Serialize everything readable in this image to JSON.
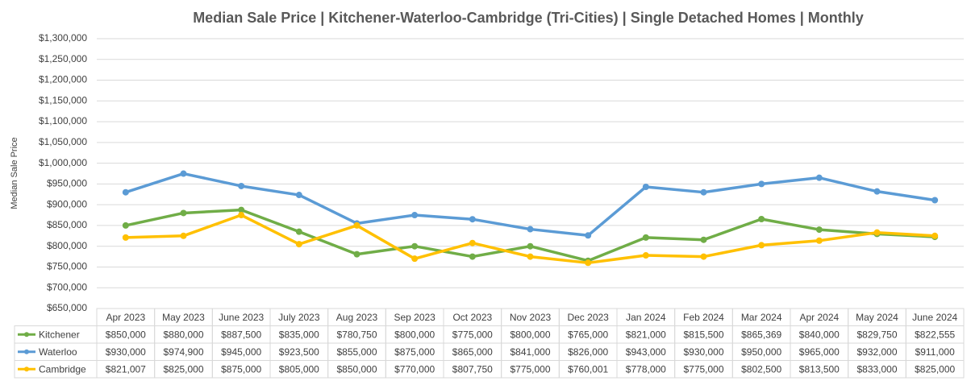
{
  "chart_data": {
    "type": "line",
    "title": "Median Sale Price | Kitchener-Waterloo-Cambridge (Tri-Cities) | Single Detached Homes | Monthly",
    "y_label": "Median Sale Price",
    "categories": [
      "Apr 2023",
      "May 2023",
      "June 2023",
      "July 2023",
      "Aug 2023",
      "Sep 2023",
      "Oct 2023",
      "Nov 2023",
      "Dec 2023",
      "Jan 2024",
      "Feb 2024",
      "Mar 2024",
      "Apr 2024",
      "May 2024",
      "June 2024"
    ],
    "series": [
      {
        "name": "Kitchener",
        "color": "#70ad47",
        "values": [
          850000,
          880000,
          887500,
          835000,
          780750,
          800000,
          775000,
          800000,
          765000,
          821000,
          815500,
          865369,
          840000,
          829750,
          822555
        ],
        "value_labels": [
          "$850,000",
          "$880,000",
          "$887,500",
          "$835,000",
          "$780,750",
          "$800,000",
          "$775,000",
          "$800,000",
          "$765,000",
          "$821,000",
          "$815,500",
          "$865,369",
          "$840,000",
          "$829,750",
          "$822,555"
        ]
      },
      {
        "name": "Waterloo",
        "color": "#5b9bd5",
        "values": [
          930000,
          974900,
          945000,
          923500,
          855000,
          875000,
          865000,
          841000,
          826000,
          943000,
          930000,
          950000,
          965000,
          932000,
          911000
        ],
        "value_labels": [
          "$930,000",
          "$974,900",
          "$945,000",
          "$923,500",
          "$855,000",
          "$875,000",
          "$865,000",
          "$841,000",
          "$826,000",
          "$943,000",
          "$930,000",
          "$950,000",
          "$965,000",
          "$932,000",
          "$911,000"
        ]
      },
      {
        "name": "Cambridge",
        "color": "#ffc000",
        "values": [
          821007,
          825000,
          875000,
          805000,
          850000,
          770000,
          807750,
          775000,
          760001,
          778000,
          775000,
          802500,
          813500,
          833000,
          825000
        ],
        "value_labels": [
          "$821,007",
          "$825,000",
          "$875,000",
          "$805,000",
          "$850,000",
          "$770,000",
          "$807,750",
          "$775,000",
          "$760,001",
          "$778,000",
          "$775,000",
          "$802,500",
          "$813,500",
          "$833,000",
          "$825,000"
        ]
      }
    ],
    "ylim": [
      650000,
      1300000
    ],
    "yticks": [
      {
        "value": 650000,
        "label": "$650,000"
      },
      {
        "value": 700000,
        "label": "$700,000"
      },
      {
        "value": 750000,
        "label": "$750,000"
      },
      {
        "value": 800000,
        "label": "$800,000"
      },
      {
        "value": 850000,
        "label": "$850,000"
      },
      {
        "value": 900000,
        "label": "$900,000"
      },
      {
        "value": 950000,
        "label": "$950,000"
      },
      {
        "value": 1000000,
        "label": "$1,000,000"
      },
      {
        "value": 1050000,
        "label": "$1,050,000"
      },
      {
        "value": 1100000,
        "label": "$1,100,000"
      },
      {
        "value": 1150000,
        "label": "$1,150,000"
      },
      {
        "value": 1200000,
        "label": "$1,200,000"
      },
      {
        "value": 1250000,
        "label": "$1,250,000"
      },
      {
        "value": 1300000,
        "label": "$1,300,000"
      }
    ],
    "grid": true
  }
}
